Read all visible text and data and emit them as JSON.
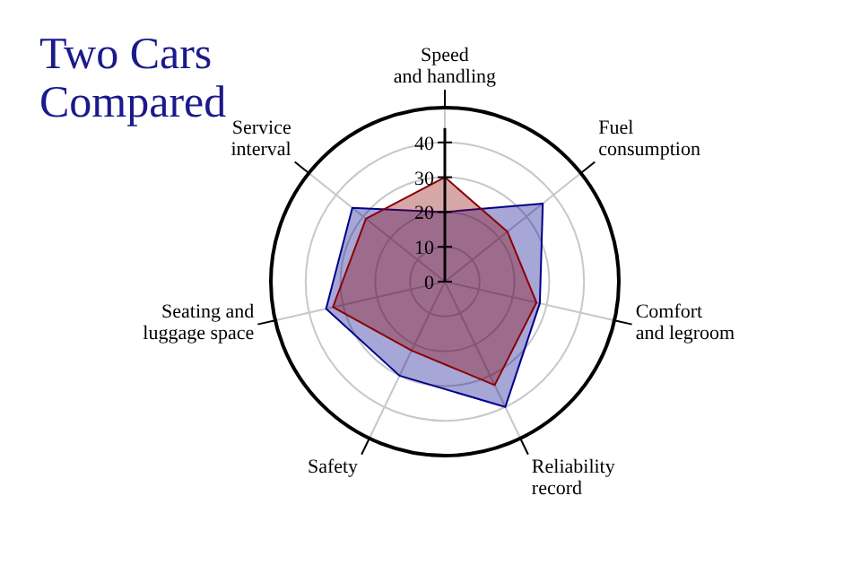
{
  "chart_data": {
    "type": "radar",
    "title": "Two Cars Compared",
    "categories": [
      "Speed and handling",
      "Fuel consumption",
      "Comfort and legroom",
      "Reliability record",
      "Safety",
      "Seating and luggage space",
      "Service interval"
    ],
    "series": [
      {
        "color": "#00008b",
        "values": [
          20,
          36,
          28,
          40,
          30,
          35,
          34
        ]
      },
      {
        "color": "#8b0000",
        "values": [
          30,
          23,
          27,
          33,
          22,
          33,
          29
        ]
      }
    ],
    "ylim": [
      0,
      50
    ],
    "yticks": [
      0,
      10,
      20,
      30,
      40
    ],
    "grid": true
  }
}
